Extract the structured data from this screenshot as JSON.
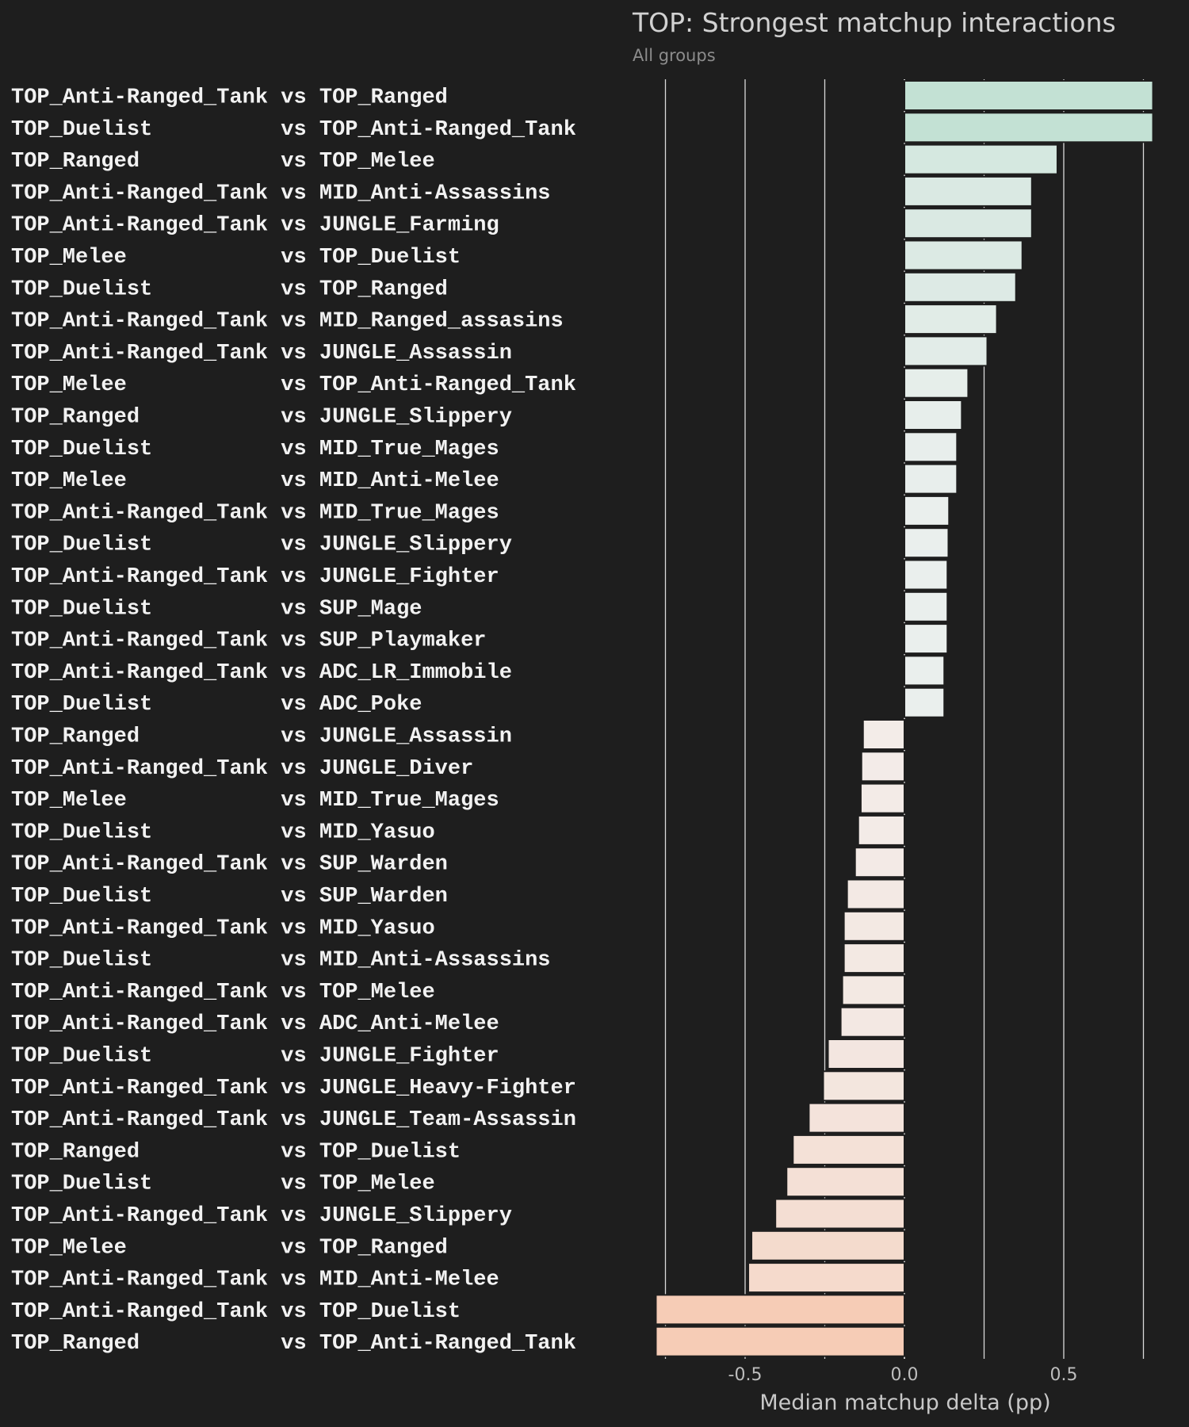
{
  "chart_data": {
    "type": "bar",
    "orientation": "horizontal",
    "title": "TOP: Strongest matchup interactions",
    "subtitle": "All groups",
    "xlabel": "Median matchup delta (pp)",
    "ylabel": "",
    "xlim": [
      -0.8,
      0.78
    ],
    "xticks": [
      -0.5,
      0.0,
      0.5
    ],
    "xtick_labels": [
      "-0.5",
      "0.0",
      "0.5"
    ],
    "gridlines_at": [
      -0.75,
      -0.5,
      -0.25,
      0.0,
      0.25,
      0.5,
      0.75
    ],
    "grid": true,
    "positive_color": "#c3e1d4",
    "negative_color": "#f6ccb6",
    "neutral_color": "#f2f2f2",
    "categories": [
      {
        "label": "TOP_Anti-Ranged_Tank vs TOP_Ranged",
        "value": 0.78
      },
      {
        "label": "TOP_Duelist          vs TOP_Anti-Ranged_Tank",
        "value": 0.78
      },
      {
        "label": "TOP_Ranged           vs TOP_Melee",
        "value": 0.48
      },
      {
        "label": "TOP_Anti-Ranged_Tank vs MID_Anti-Assassins",
        "value": 0.4
      },
      {
        "label": "TOP_Anti-Ranged_Tank vs JUNGLE_Farming",
        "value": 0.4
      },
      {
        "label": "TOP_Melee            vs TOP_Duelist",
        "value": 0.37
      },
      {
        "label": "TOP_Duelist          vs TOP_Ranged",
        "value": 0.35
      },
      {
        "label": "TOP_Anti-Ranged_Tank vs MID_Ranged_assasins",
        "value": 0.29
      },
      {
        "label": "TOP_Anti-Ranged_Tank vs JUNGLE_Assassin",
        "value": 0.26
      },
      {
        "label": "TOP_Melee            vs TOP_Anti-Ranged_Tank",
        "value": 0.2
      },
      {
        "label": "TOP_Ranged           vs JUNGLE_Slippery",
        "value": 0.18
      },
      {
        "label": "TOP_Duelist          vs MID_True_Mages",
        "value": 0.165
      },
      {
        "label": "TOP_Melee            vs MID_Anti-Melee",
        "value": 0.165
      },
      {
        "label": "TOP_Anti-Ranged_Tank vs MID_True_Mages",
        "value": 0.14
      },
      {
        "label": "TOP_Duelist          vs JUNGLE_Slippery",
        "value": 0.138
      },
      {
        "label": "TOP_Anti-Ranged_Tank vs JUNGLE_Fighter",
        "value": 0.135
      },
      {
        "label": "TOP_Duelist          vs SUP_Mage",
        "value": 0.135
      },
      {
        "label": "TOP_Anti-Ranged_Tank vs SUP_Playmaker",
        "value": 0.135
      },
      {
        "label": "TOP_Anti-Ranged_Tank vs ADC_LR_Immobile",
        "value": 0.125
      },
      {
        "label": "TOP_Duelist          vs ADC_Poke",
        "value": 0.125
      },
      {
        "label": "TOP_Ranged           vs JUNGLE_Assassin",
        "value": -0.13
      },
      {
        "label": "TOP_Anti-Ranged_Tank vs JUNGLE_Diver",
        "value": -0.135
      },
      {
        "label": "TOP_Melee            vs MID_True_Mages",
        "value": -0.137
      },
      {
        "label": "TOP_Duelist          vs MID_Yasuo",
        "value": -0.145
      },
      {
        "label": "TOP_Anti-Ranged_Tank vs SUP_Warden",
        "value": -0.155
      },
      {
        "label": "TOP_Duelist          vs SUP_Warden",
        "value": -0.18
      },
      {
        "label": "TOP_Anti-Ranged_Tank vs MID_Yasuo",
        "value": -0.19
      },
      {
        "label": "TOP_Duelist          vs MID_Anti-Assassins",
        "value": -0.19
      },
      {
        "label": "TOP_Anti-Ranged_Tank vs TOP_Melee",
        "value": -0.195
      },
      {
        "label": "TOP_Anti-Ranged_Tank vs ADC_Anti-Melee",
        "value": -0.2
      },
      {
        "label": "TOP_Duelist          vs JUNGLE_Fighter",
        "value": -0.24
      },
      {
        "label": "TOP_Anti-Ranged_Tank vs JUNGLE_Heavy-Fighter",
        "value": -0.255
      },
      {
        "label": "TOP_Anti-Ranged_Tank vs JUNGLE_Team-Assassin",
        "value": -0.3
      },
      {
        "label": "TOP_Ranged           vs TOP_Duelist",
        "value": -0.35
      },
      {
        "label": "TOP_Duelist          vs TOP_Melee",
        "value": -0.37
      },
      {
        "label": "TOP_Anti-Ranged_Tank vs JUNGLE_Slippery",
        "value": -0.405
      },
      {
        "label": "TOP_Melee            vs TOP_Ranged",
        "value": -0.48
      },
      {
        "label": "TOP_Anti-Ranged_Tank vs MID_Anti-Melee",
        "value": -0.49
      },
      {
        "label": "TOP_Anti-Ranged_Tank vs TOP_Duelist",
        "value": -0.78
      },
      {
        "label": "TOP_Ranged           vs TOP_Anti-Ranged_Tank",
        "value": -0.78
      }
    ]
  }
}
